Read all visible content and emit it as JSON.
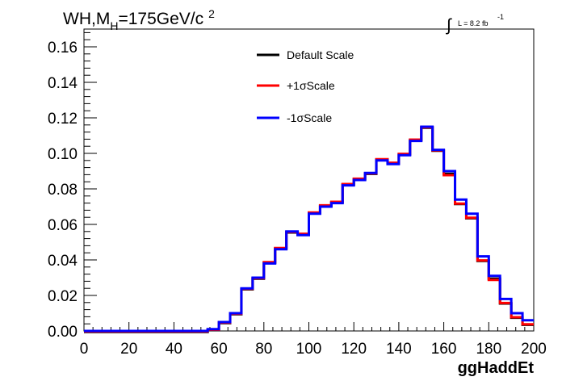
{
  "chart_data": {
    "type": "line",
    "subtype": "step-histogram",
    "title": {
      "prefix": "WH,M",
      "subscript": "H",
      "main": "=175GeV/c",
      "superscript": "2"
    },
    "lumi": {
      "integral_symbol": "∫",
      "text": "L = 8.2 fb",
      "superscript": "-1"
    },
    "xlabel": "ggHaddEt",
    "ylabel": "",
    "xlim": [
      0,
      200
    ],
    "ylim": [
      0,
      0.17
    ],
    "x_ticks": [
      "0",
      "20",
      "40",
      "60",
      "80",
      "100",
      "120",
      "140",
      "160",
      "180",
      "200"
    ],
    "y_ticks": [
      "0.00",
      "0.02",
      "0.04",
      "0.06",
      "0.08",
      "0.10",
      "0.12",
      "0.14",
      "0.16"
    ],
    "bin_edges": [
      0,
      5,
      10,
      15,
      20,
      25,
      30,
      35,
      40,
      45,
      50,
      55,
      60,
      65,
      70,
      75,
      80,
      85,
      90,
      95,
      100,
      105,
      110,
      115,
      120,
      125,
      130,
      135,
      140,
      145,
      150,
      155,
      160,
      165,
      170,
      175,
      180,
      185,
      190,
      195,
      200
    ],
    "legend_position": "top-center",
    "series": [
      {
        "name": "Default Scale",
        "color": "#000000",
        "values": [
          0,
          0,
          0,
          0,
          0,
          0,
          0,
          0,
          0,
          0,
          0,
          0.001,
          0.005,
          0.01,
          0.024,
          0.03,
          0.039,
          0.047,
          0.056,
          0.055,
          0.067,
          0.071,
          0.073,
          0.083,
          0.086,
          0.089,
          0.097,
          0.095,
          0.1,
          0.108,
          0.115,
          0.102,
          0.089,
          0.072,
          0.064,
          0.04,
          0.03,
          0.016,
          0.008,
          0.004,
          0.002
        ]
      },
      {
        "name": "+1σScale",
        "color": "#ff0000",
        "values": [
          0,
          0,
          0,
          0,
          0,
          0,
          0,
          0,
          0,
          0,
          0,
          0.001,
          0.005,
          0.01,
          0.024,
          0.03,
          0.039,
          0.047,
          0.056,
          0.055,
          0.067,
          0.071,
          0.073,
          0.083,
          0.086,
          0.089,
          0.097,
          0.095,
          0.1,
          0.108,
          0.115,
          0.102,
          0.088,
          0.072,
          0.064,
          0.04,
          0.029,
          0.016,
          0.008,
          0.004,
          0.002
        ]
      },
      {
        "name": "-1σScale",
        "color": "#0000ff",
        "values": [
          0,
          0,
          0,
          0,
          0,
          0,
          0,
          0,
          0,
          0,
          0,
          0.001,
          0.005,
          0.01,
          0.024,
          0.03,
          0.038,
          0.046,
          0.056,
          0.054,
          0.066,
          0.07,
          0.072,
          0.082,
          0.085,
          0.089,
          0.096,
          0.094,
          0.099,
          0.107,
          0.115,
          0.102,
          0.09,
          0.074,
          0.066,
          0.042,
          0.031,
          0.018,
          0.01,
          0.006,
          0.003
        ]
      }
    ]
  }
}
